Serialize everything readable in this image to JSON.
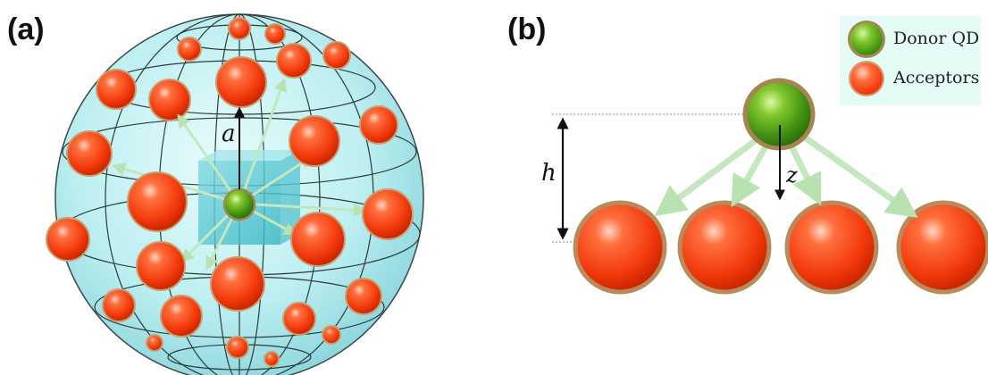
{
  "panels": {
    "a": {
      "label": "(a)",
      "radius_label": "a"
    },
    "b": {
      "label": "(b)",
      "height_label": "h",
      "distance_label": "z"
    }
  },
  "legend": {
    "donor": {
      "label": "Donor QD",
      "icon": "green-sphere-icon"
    },
    "acceptor": {
      "label": "Acceptors",
      "icon": "orange-sphere-icon"
    }
  },
  "colors": {
    "donor": "#5aa81a",
    "acceptor": "#f2450f",
    "sphere": "#bff0f2",
    "arrow": "#c5e7bf",
    "legend_bg": "#e4fbf6"
  }
}
